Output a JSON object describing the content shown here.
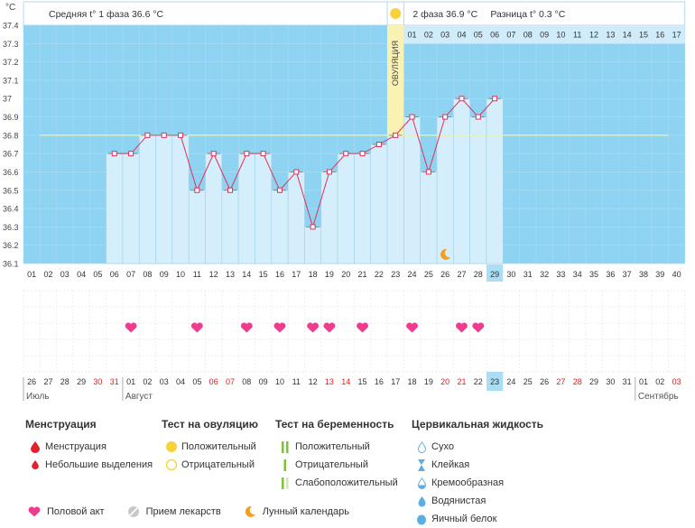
{
  "chart_data": {
    "type": "line",
    "y_unit": "°C",
    "ylim": [
      36.1,
      37.4
    ],
    "y_ticks": [
      "37.4",
      "37.3",
      "37.2",
      "37.1",
      "37",
      "36.9",
      "36.8",
      "36.7",
      "36.6",
      "36.5",
      "36.4",
      "36.3",
      "36.2",
      "36.1"
    ],
    "cycle_days": [
      "01",
      "02",
      "03",
      "04",
      "05",
      "06",
      "07",
      "08",
      "09",
      "10",
      "11",
      "12",
      "13",
      "14",
      "15",
      "16",
      "17",
      "18",
      "19",
      "20",
      "21",
      "22",
      "23",
      "24",
      "25",
      "26",
      "27",
      "28",
      "29",
      "30",
      "31",
      "32",
      "33",
      "34",
      "35",
      "36",
      "37",
      "38",
      "39",
      "40"
    ],
    "phase2_days": [
      "01",
      "02",
      "03",
      "04",
      "05",
      "06",
      "07",
      "08",
      "09",
      "10",
      "11",
      "12",
      "13",
      "14",
      "15",
      "16",
      "17"
    ],
    "temperature": {
      "days": [
        6,
        7,
        8,
        9,
        10,
        11,
        12,
        13,
        14,
        15,
        16,
        17,
        18,
        19,
        20,
        21,
        22,
        23,
        24,
        25,
        26,
        27,
        28,
        29
      ],
      "values": [
        36.7,
        36.7,
        36.8,
        36.8,
        36.8,
        36.5,
        36.7,
        36.5,
        36.7,
        36.7,
        36.5,
        36.6,
        36.3,
        36.6,
        36.7,
        36.7,
        36.75,
        36.8,
        36.9,
        36.6,
        36.9,
        37.0,
        36.9,
        37.0
      ]
    },
    "coverline": 36.8,
    "ovulation_day": 23,
    "current_day": 29,
    "intercourse_days": [
      7,
      11,
      14,
      16,
      18,
      19,
      21,
      24,
      27,
      28
    ],
    "moon_day": 26,
    "calendar_days": [
      {
        "d": "26",
        "red": false
      },
      {
        "d": "27",
        "red": false
      },
      {
        "d": "28",
        "red": false
      },
      {
        "d": "29",
        "red": false
      },
      {
        "d": "30",
        "red": true
      },
      {
        "d": "31",
        "red": true
      },
      {
        "d": "01",
        "red": false
      },
      {
        "d": "02",
        "red": false
      },
      {
        "d": "03",
        "red": false
      },
      {
        "d": "04",
        "red": false
      },
      {
        "d": "05",
        "red": false
      },
      {
        "d": "06",
        "red": true
      },
      {
        "d": "07",
        "red": true
      },
      {
        "d": "08",
        "red": false
      },
      {
        "d": "09",
        "red": false
      },
      {
        "d": "10",
        "red": false
      },
      {
        "d": "11",
        "red": false
      },
      {
        "d": "12",
        "red": false
      },
      {
        "d": "13",
        "red": true
      },
      {
        "d": "14",
        "red": true
      },
      {
        "d": "15",
        "red": false
      },
      {
        "d": "16",
        "red": false
      },
      {
        "d": "17",
        "red": false
      },
      {
        "d": "18",
        "red": false
      },
      {
        "d": "19",
        "red": false
      },
      {
        "d": "20",
        "red": true
      },
      {
        "d": "21",
        "red": true
      },
      {
        "d": "22",
        "red": false
      },
      {
        "d": "23",
        "red": false
      },
      {
        "d": "24",
        "red": false
      },
      {
        "d": "25",
        "red": false
      },
      {
        "d": "26",
        "red": false
      },
      {
        "d": "27",
        "red": true
      },
      {
        "d": "28",
        "red": true
      },
      {
        "d": "29",
        "red": false
      },
      {
        "d": "30",
        "red": false
      },
      {
        "d": "31",
        "red": false
      },
      {
        "d": "01",
        "red": false
      },
      {
        "d": "02",
        "red": false
      },
      {
        "d": "03",
        "red": true
      }
    ],
    "months": [
      {
        "name": "Июль",
        "start_index": 0
      },
      {
        "name": "Август",
        "start_index": 6
      },
      {
        "name": "Сентябрь",
        "start_index": 37
      }
    ],
    "ovulation_label": "ОВУЛЯЦИЯ",
    "phase1_label": "Средняя t° 1 фаза 36.6 °C",
    "phase2_label": "2 фаза 36.9 °C",
    "diff_label": "Разница t° 0.3 °C",
    "colors": {
      "chart_bg": "#8fd3f2",
      "bar": "#d4eefb",
      "bar_edge": "#9fd0ec",
      "line": "#e0305a",
      "coverline": "#f5ee9a",
      "ovulation": "#faf2b3",
      "heart": "#ee3c8e",
      "moon": "#f0a020",
      "sun": "#f7d23c",
      "current": "#a9def5",
      "weekend": "#e02020"
    }
  },
  "legend": {
    "menstruation": {
      "title": "Менструация",
      "items": [
        "Менструация",
        "Небольшие выделения"
      ]
    },
    "ovulation_test": {
      "title": "Тест на овуляцию",
      "items": [
        "Положительный",
        "Отрицательный"
      ]
    },
    "pregnancy_test": {
      "title": "Тест на беременность",
      "items": [
        "Положительный",
        "Отрицательный",
        "Слабоположительный"
      ]
    },
    "cervical": {
      "title": "Цервикальная жидкость",
      "items": [
        "Сухо",
        "Клейкая",
        "Кремообразная",
        "Водянистая",
        "Яичный белок"
      ]
    },
    "bottom": {
      "intercourse": "Половой акт",
      "medication": "Прием лекарств",
      "moon": "Лунный календарь"
    }
  }
}
